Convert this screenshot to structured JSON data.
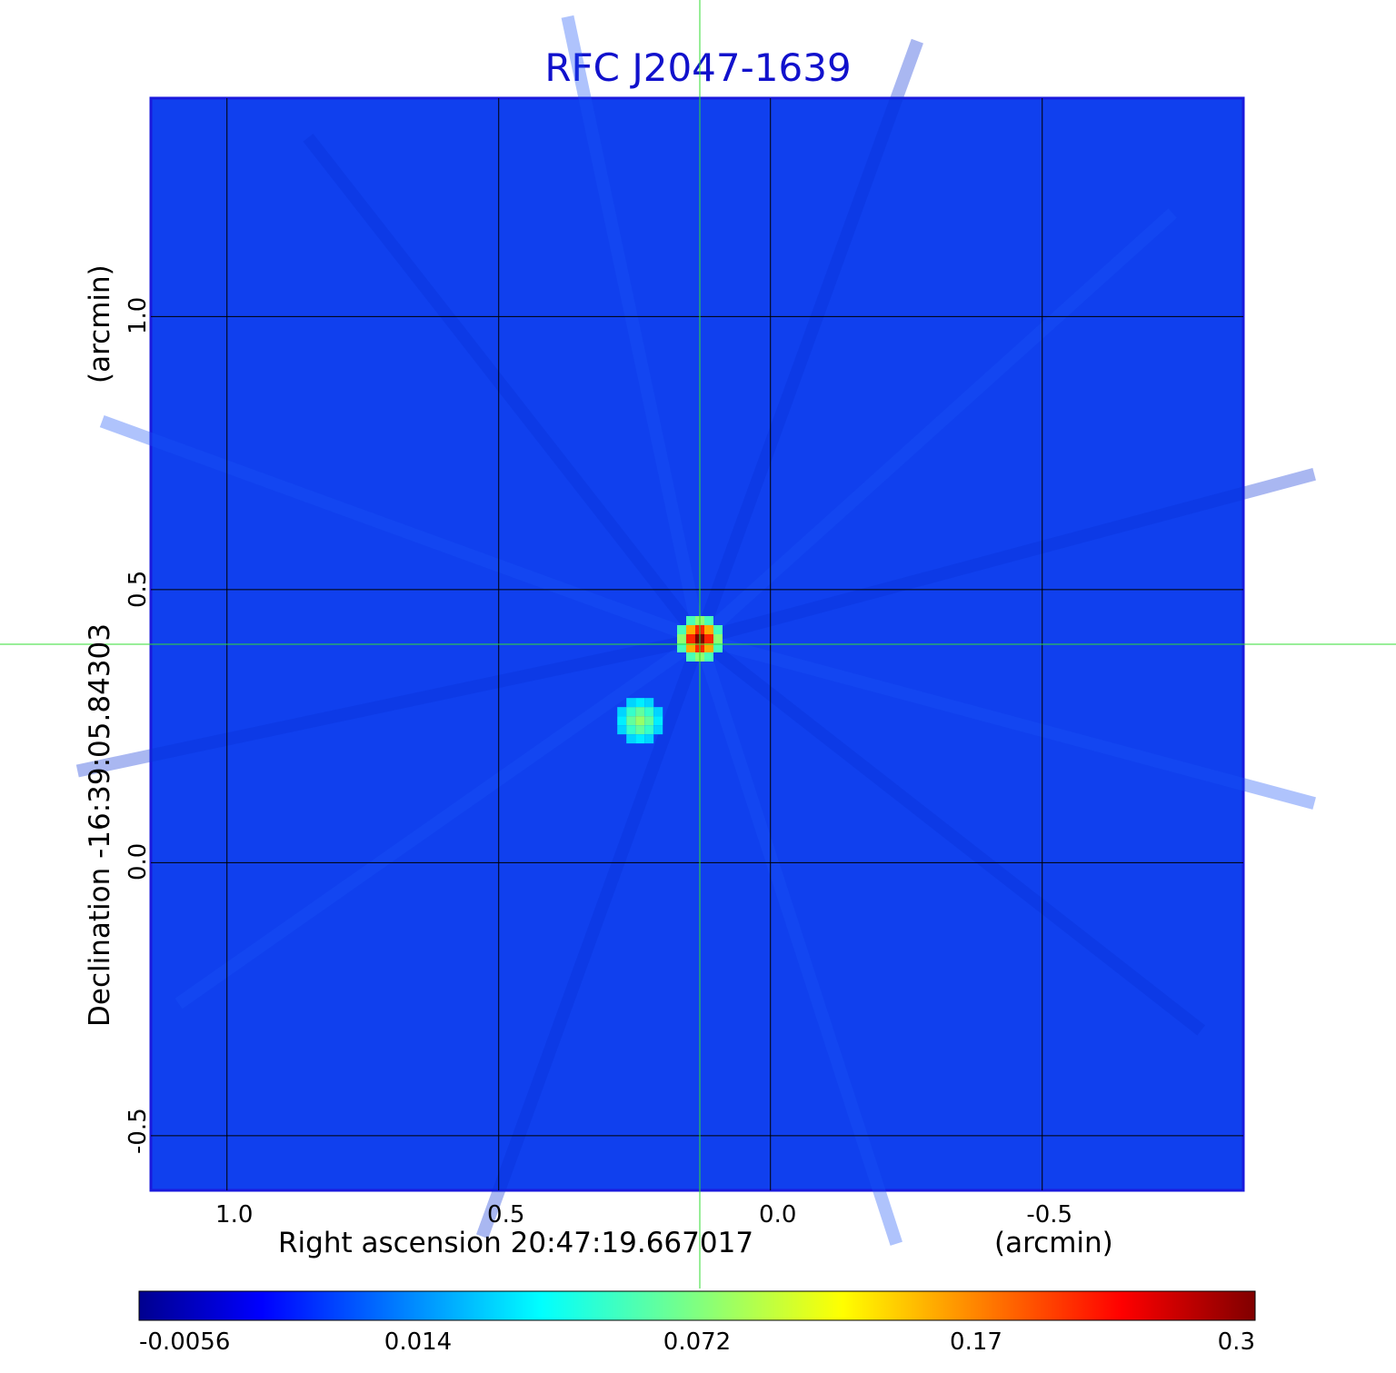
{
  "chart_data": {
    "type": "heatmap",
    "title": "RFC J2047-1639",
    "xlabel": "Right ascension  20:47:19.667017",
    "xunit": "(arcmin)",
    "ylabel": "Declination  -16:39:05.84303",
    "yunit": "(arcmin)",
    "x_ticks": [
      "1.0",
      "0.5",
      "0.0",
      "-0.5"
    ],
    "y_ticks": [
      "1.0",
      "0.5",
      "0.0",
      "-0.5"
    ],
    "x_tick_values": [
      1.0,
      0.5,
      0.0,
      -0.5
    ],
    "y_tick_values": [
      1.0,
      0.5,
      0.0,
      -0.5
    ],
    "xlim": [
      1.14,
      -0.87
    ],
    "ylim": [
      -0.6,
      1.4
    ],
    "grid": true,
    "colorscale": "jet",
    "colorbar_ticks": [
      "-0.0056",
      "0.014",
      "0.072",
      "0.17",
      "0.3"
    ],
    "colorbar_range": [
      -0.0056,
      0.3
    ],
    "background_level": 0.005,
    "sources": [
      {
        "x": 0.13,
        "y": 0.41,
        "peak": 0.3
      },
      {
        "x": 0.24,
        "y": 0.26,
        "peak": 0.06
      }
    ],
    "crosshair": {
      "x": 0.13,
      "y": 0.4,
      "color": "#33dd33"
    }
  }
}
